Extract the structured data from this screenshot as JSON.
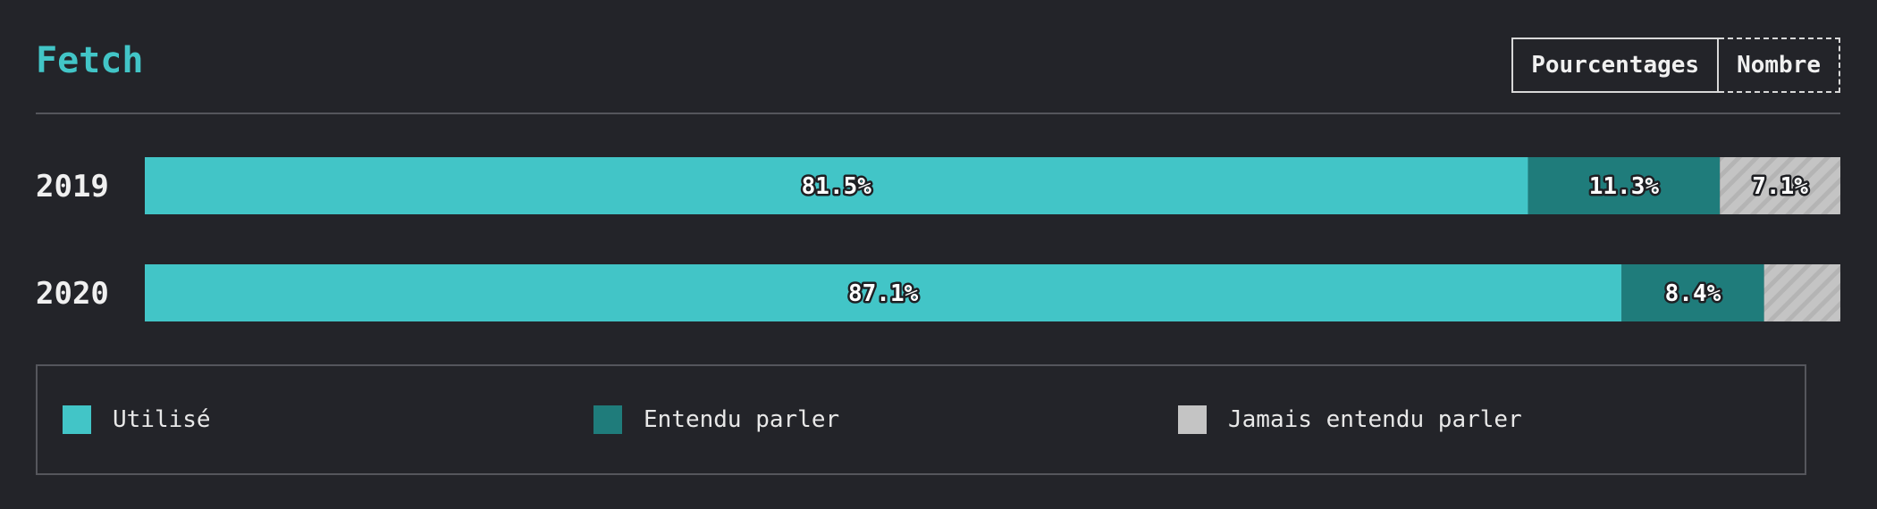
{
  "title": "Fetch",
  "toggle": {
    "percent_label": "Pourcentages",
    "count_label": "Nombre"
  },
  "colors": {
    "used": "#42c5c7",
    "heard": "#1f7c7b",
    "never": "#c4c4c4",
    "title": "#42c5c7"
  },
  "legend": [
    {
      "label": "Utilisé",
      "color": "#42c5c7"
    },
    {
      "label": "Entendu parler",
      "color": "#1f7c7b"
    },
    {
      "label": "Jamais entendu parler",
      "color": "#c4c4c4"
    }
  ],
  "chart_data": {
    "type": "bar",
    "stacked": true,
    "orientation": "horizontal",
    "categories": [
      "2019",
      "2020"
    ],
    "series": [
      {
        "name": "Utilisé",
        "values": [
          81.5,
          87.1
        ],
        "labels": [
          "81.5%",
          "87.1%"
        ]
      },
      {
        "name": "Entendu parler",
        "values": [
          11.3,
          8.4
        ],
        "labels": [
          "11.3%",
          "8.4%"
        ]
      },
      {
        "name": "Jamais entendu parler",
        "values": [
          7.1,
          4.5
        ],
        "labels": [
          "7.1%",
          ""
        ]
      }
    ],
    "xlim": [
      0,
      100
    ]
  }
}
